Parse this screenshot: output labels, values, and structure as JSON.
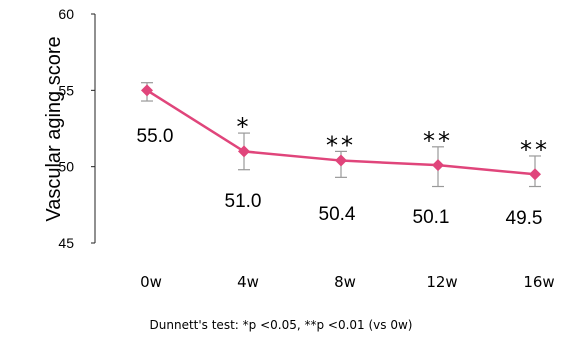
{
  "chart_data": {
    "type": "line",
    "ylabel": "Vascular aging score",
    "xlabel": "",
    "categories": [
      "0w",
      "4w",
      "8w",
      "12w",
      "16w"
    ],
    "yticks": [
      45,
      50,
      55,
      60
    ],
    "ylim": [
      45,
      60
    ],
    "grid": false,
    "series": [
      {
        "values": [
          55.0,
          51.0,
          50.4,
          50.1,
          49.5
        ],
        "error_high": [
          55.5,
          52.2,
          51.0,
          51.3,
          50.7
        ],
        "error_low": [
          54.3,
          49.8,
          49.3,
          48.7,
          48.7
        ],
        "data_labels": [
          "55.0",
          "51.0",
          "50.4",
          "50.1",
          "49.5"
        ],
        "significance": [
          "",
          "*",
          "**",
          "**",
          "**"
        ],
        "color": "#e0457b"
      }
    ],
    "footnote": "Dunnett's test:   *p <0.05, **p <0.01  (vs 0w)"
  }
}
